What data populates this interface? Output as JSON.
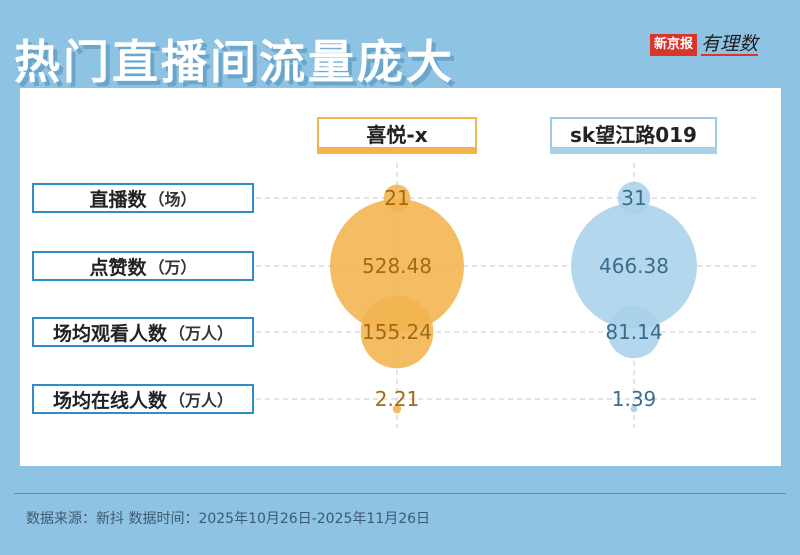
{
  "title": "热门直播间流量庞大",
  "brand": {
    "name": "新京报",
    "sub": "有理数"
  },
  "columns": [
    "喜悦-x",
    "sk望江路019"
  ],
  "rows": [
    {
      "label": "直播数",
      "unit": "（场）"
    },
    {
      "label": "点赞数",
      "unit": "（万）"
    },
    {
      "label": "场均观看人数",
      "unit": "（万人）"
    },
    {
      "label": "场均在线人数",
      "unit": "（万人）"
    }
  ],
  "chart_data": {
    "type": "bubble",
    "categories": [
      "直播数（场）",
      "点赞数（万）",
      "场均观看人数（万人）",
      "场均在线人数（万人）"
    ],
    "series": [
      {
        "name": "喜悦-x",
        "values": [
          21,
          528.48,
          155.24,
          2.21
        ],
        "labels": [
          "21",
          "528.48",
          "155.24",
          "2.21"
        ],
        "color": "#f3b44e",
        "text_color": "#a36a0f"
      },
      {
        "name": "sk望江路019",
        "values": [
          31,
          466.38,
          81.14,
          1.39
        ],
        "labels": [
          "31",
          "466.38",
          "81.14",
          "1.39"
        ],
        "color": "#a9d2ea",
        "text_color": "#3b6c8c"
      }
    ],
    "grid": true
  },
  "footer": "数据来源：新抖 数据时间：2025年10月26日-2025年11月26日"
}
